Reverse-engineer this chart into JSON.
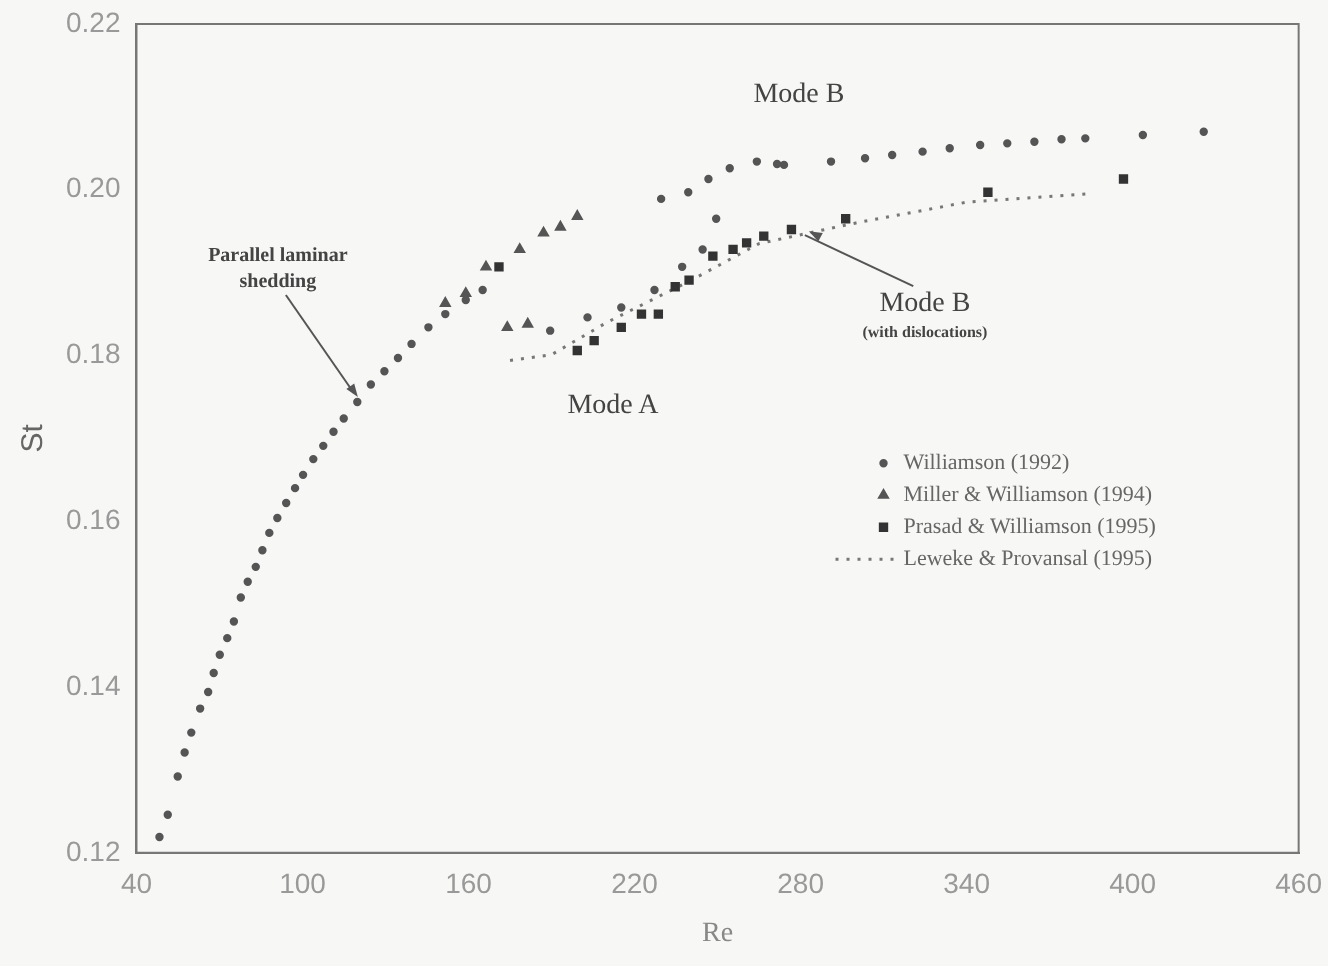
{
  "chart_data": {
    "type": "scatter",
    "xlabel": "Re",
    "ylabel": "St",
    "xlim": [
      40,
      460
    ],
    "xticks": [
      40,
      100,
      160,
      220,
      280,
      340,
      400,
      460
    ],
    "ylim": [
      0.12,
      0.22
    ],
    "yticks": [
      {
        "value": 0.12,
        "label": "0.12"
      },
      {
        "value": 0.14,
        "label": "0.14"
      },
      {
        "value": 0.16,
        "label": "0.16"
      },
      {
        "value": 0.18,
        "label": "0.18"
      },
      {
        "value": 0.2,
        "label": "0.20"
      },
      {
        "value": 0.22,
        "label": "0.22"
      }
    ],
    "grid": false,
    "legend": "bottom right",
    "series": [
      {
        "name": "Williamson (1992)",
        "type": "scatter",
        "marker": "circle",
        "color": "#555555",
        "x": [
          48.3,
          51.3,
          54.9,
          57.4,
          59.8,
          63.0,
          65.9,
          67.9,
          70.1,
          72.8,
          75.2,
          77.7,
          80.2,
          83.1,
          85.5,
          88.0,
          90.9,
          94.1,
          97.3,
          100.2,
          103.9,
          107.5,
          111.2,
          114.9,
          119.8,
          124.7,
          129.6,
          134.5,
          139.4,
          145.5,
          151.6,
          159.0,
          165.1,
          189.5,
          203,
          215.2,
          227.2,
          237.2,
          244.6,
          249.5,
          229.6,
          239.4,
          246.7,
          254.4,
          264.2,
          271.5,
          274,
          291,
          303.3,
          313.1,
          324.1,
          333.9,
          344.9,
          354.7,
          364.5,
          374.3,
          382.9,
          403.7,
          425.7
        ],
        "values": [
          0.1219,
          0.1246,
          0.1292,
          0.1321,
          0.1345,
          0.1374,
          0.1394,
          0.1417,
          0.1439,
          0.1459,
          0.1479,
          0.1508,
          0.1527,
          0.1545,
          0.1565,
          0.1586,
          0.1604,
          0.1622,
          0.164,
          0.1656,
          0.1675,
          0.1691,
          0.1708,
          0.1724,
          0.1744,
          0.1765,
          0.1781,
          0.1797,
          0.1814,
          0.1834,
          0.185,
          0.1867,
          0.1879,
          0.183,
          0.1846,
          0.1858,
          0.1879,
          0.1907,
          0.1928,
          0.1965,
          0.1989,
          0.1997,
          0.2013,
          0.2026,
          0.2034,
          0.2031,
          0.203,
          0.2034,
          0.2038,
          0.2042,
          0.2046,
          0.205,
          0.2054,
          0.2056,
          0.2058,
          0.2061,
          0.2062,
          0.2066,
          0.207
        ]
      },
      {
        "name": "Miller & Williamson (1994)",
        "type": "scatter",
        "marker": "triangle",
        "color": "#555555",
        "x": [
          151.6,
          159,
          166.3,
          178.5,
          187.1,
          193.2,
          199.3,
          174,
          181.4
        ],
        "values": [
          0.1863,
          0.1875,
          0.1907,
          0.1928,
          0.1948,
          0.1955,
          0.1968,
          0.1834,
          0.1838
        ]
      },
      {
        "name": "Prasad & Williamson (1995)",
        "type": "scatter",
        "marker": "square",
        "color": "#333333",
        "x": [
          171,
          199.3,
          205.4,
          215.2,
          222.5,
          228.6,
          234.7,
          239.7,
          248.3,
          255.6,
          260.5,
          266.7,
          276.7,
          296.3,
          347.7,
          396.7
        ],
        "values": [
          0.1907,
          0.1806,
          0.1818,
          0.1834,
          0.185,
          0.185,
          0.1883,
          0.1891,
          0.192,
          0.1928,
          0.1936,
          0.1944,
          0.1952,
          0.1965,
          0.1997,
          0.2013
        ]
      },
      {
        "name": "Leweke & Provansal (1995)",
        "type": "line",
        "marker": "none",
        "line_style": "dotted",
        "color": "#777777",
        "x": [
          175,
          190,
          210,
          240,
          265,
          300,
          340,
          384
        ],
        "values": [
          0.1794,
          0.1801,
          0.184,
          0.189,
          0.1935,
          0.196,
          0.1985,
          0.1995
        ]
      }
    ],
    "annotations": [
      {
        "text": "Parallel laminar shedding",
        "x": 120,
        "y": 0.175
      },
      {
        "text": "Mode B",
        "x": 283,
        "y": 0.195
      },
      "(with dislocations)",
      "Mode A",
      "Mode B"
    ]
  }
}
